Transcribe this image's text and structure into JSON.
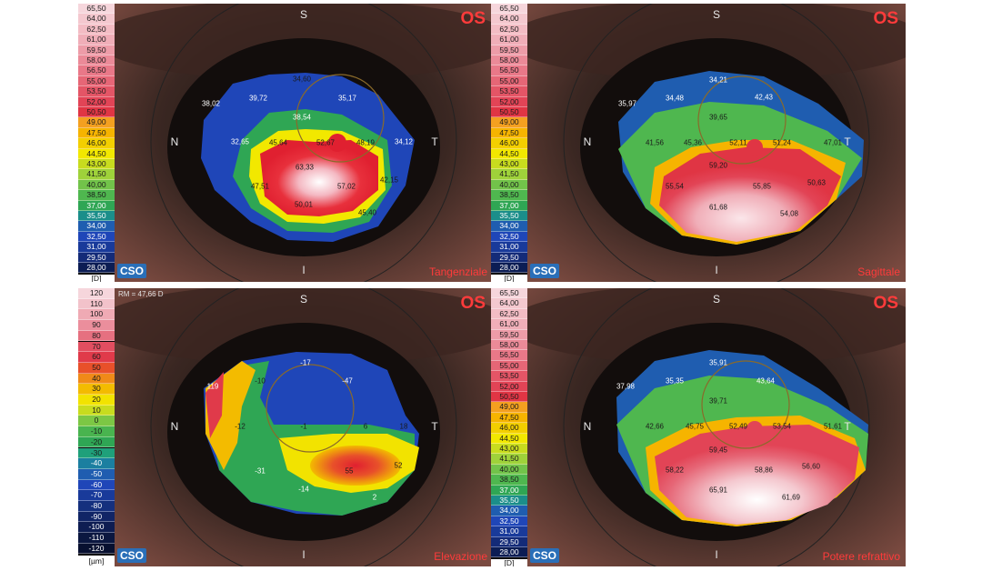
{
  "panels": [
    {
      "id": "tangential",
      "eye": "OS",
      "map_name": "Tangenziale",
      "unit": "[D]",
      "ref_text": "",
      "directions": {
        "superior": "S",
        "inferior": "I",
        "nasal": "N",
        "temporal": "T"
      },
      "logo": "CSO",
      "scale": [
        "65,50",
        "64,00",
        "62,50",
        "61,00",
        "59,50",
        "58,00",
        "56,50",
        "55,00",
        "53,50",
        "52,00",
        "50,50",
        "49,00",
        "47,50",
        "46,00",
        "44,50",
        "43,00",
        "41,50",
        "40,00",
        "38,50",
        "37,00",
        "35,50",
        "34,00",
        "32,50",
        "31,00",
        "29,50",
        "28,00"
      ],
      "values": [
        "34,60",
        "38,02",
        "39,72",
        "35,17",
        "38,54",
        "32,65",
        "45,64",
        "52,67",
        "48,19",
        "34,12",
        "63,33",
        "47,51",
        "57,02",
        "42,15",
        "50,01",
        "45,40"
      ]
    },
    {
      "id": "sagittal",
      "eye": "OS",
      "map_name": "Sagittale",
      "unit": "[D]",
      "ref_text": "",
      "directions": {
        "superior": "S",
        "inferior": "I",
        "nasal": "N",
        "temporal": "T"
      },
      "logo": "CSO",
      "scale": [
        "65,50",
        "64,00",
        "62,50",
        "61,00",
        "59,50",
        "58,00",
        "56,50",
        "55,00",
        "53,50",
        "52,00",
        "50,50",
        "49,00",
        "47,50",
        "46,00",
        "44,50",
        "43,00",
        "41,50",
        "40,00",
        "38,50",
        "37,00",
        "35,50",
        "34,00",
        "32,50",
        "31,00",
        "29,50",
        "28,00"
      ],
      "values": [
        "34,21",
        "35,97",
        "34,48",
        "42,43",
        "39,65",
        "41,56",
        "45,36",
        "52,11",
        "51,24",
        "47,01",
        "59,20",
        "55,54",
        "55,85",
        "50,63",
        "61,68",
        "54,08"
      ]
    },
    {
      "id": "elevation",
      "eye": "OS",
      "map_name": "Elevazione",
      "unit": "[µm]",
      "ref_text": "RM = 47,66 D",
      "directions": {
        "superior": "S",
        "inferior": "I",
        "nasal": "N",
        "temporal": "T"
      },
      "logo": "CSO",
      "scale": [
        "120",
        "110",
        "100",
        "90",
        "80",
        "70",
        "60",
        "50",
        "40",
        "30",
        "20",
        "10",
        "0",
        "-10",
        "-20",
        "-30",
        "-40",
        "-50",
        "-60",
        "-70",
        "-80",
        "-90",
        "-100",
        "-110",
        "-120"
      ],
      "values": [
        "-17",
        "119",
        "-10",
        "-47",
        "-12",
        "-1",
        "6",
        "18",
        "55",
        "52",
        "-31",
        "-14",
        "2"
      ]
    },
    {
      "id": "refractive",
      "eye": "OS",
      "map_name": "Potere refrattivo",
      "unit": "[D]",
      "ref_text": "",
      "directions": {
        "superior": "S",
        "inferior": "I",
        "nasal": "N",
        "temporal": "T"
      },
      "logo": "CSO",
      "scale": [
        "65,50",
        "64,00",
        "62,50",
        "61,00",
        "59,50",
        "58,00",
        "56,50",
        "55,00",
        "53,50",
        "52,00",
        "50,50",
        "49,00",
        "47,50",
        "46,00",
        "44,50",
        "43,00",
        "41,50",
        "40,00",
        "38,50",
        "37,00",
        "35,50",
        "34,00",
        "32,50",
        "31,00",
        "29,50",
        "28,00"
      ],
      "values": [
        "35,91",
        "37,98",
        "35,35",
        "43,64",
        "39,71",
        "42,66",
        "45,75",
        "52,49",
        "53,54",
        "51,61",
        "59,45",
        "58,22",
        "58,86",
        "56,60",
        "65,91",
        "61,69"
      ]
    }
  ],
  "colors": {
    "scale_diopter": [
      "#f6d6dc",
      "#f4c8cf",
      "#f3bcc4",
      "#f0aeb8",
      "#ed9ca8",
      "#eb8a98",
      "#e97888",
      "#e66676",
      "#e45566",
      "#e24456",
      "#e03544",
      "#f4a020",
      "#f6b400",
      "#f3cf00",
      "#f2e800",
      "#c8dc1e",
      "#9fd23a",
      "#72c34a",
      "#4fb74f",
      "#2fa654",
      "#1b8e8a",
      "#1f5db0",
      "#1f46b8",
      "#193a9a",
      "#142b78",
      "#0c1d54"
    ],
    "scale_elevation": [
      "#f6d6dc",
      "#f2c2ca",
      "#ef aab4",
      "#eb8e9c",
      "#e67080",
      "#e24e60",
      "#e03a4a",
      "#e8502a",
      "#f08a18",
      "#f3bb00",
      "#f2e300",
      "#c8dc1e",
      "#7cc744",
      "#49b44f",
      "#2fa654",
      "#1fa07a",
      "#1b7fa0",
      "#1f5db0",
      "#1f46b8",
      "#193a9a",
      "#15307e",
      "#112566",
      "#0e1d52",
      "#0b1740",
      "#081030"
    ]
  }
}
